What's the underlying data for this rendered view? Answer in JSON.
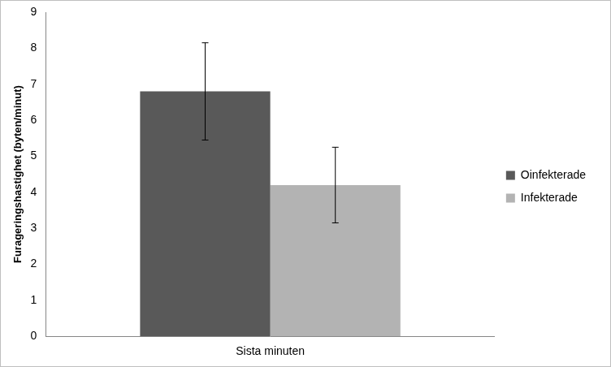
{
  "chart_data": {
    "type": "bar",
    "y_label": "Furageringshastighet (byten/minut)",
    "categories": [
      "Sista minuten"
    ],
    "series": [
      {
        "name": "Oinfekterade",
        "color": "#595959",
        "values": [
          6.8
        ],
        "error": [
          1.35
        ]
      },
      {
        "name": "Infekterade",
        "color": "#b3b3b3",
        "values": [
          4.2
        ],
        "error": [
          1.05
        ]
      }
    ],
    "ylim": [
      0,
      9
    ],
    "yticks": [
      0,
      1,
      2,
      3,
      4,
      5,
      6,
      7,
      8,
      9
    ],
    "grid": false,
    "legend": "right"
  }
}
